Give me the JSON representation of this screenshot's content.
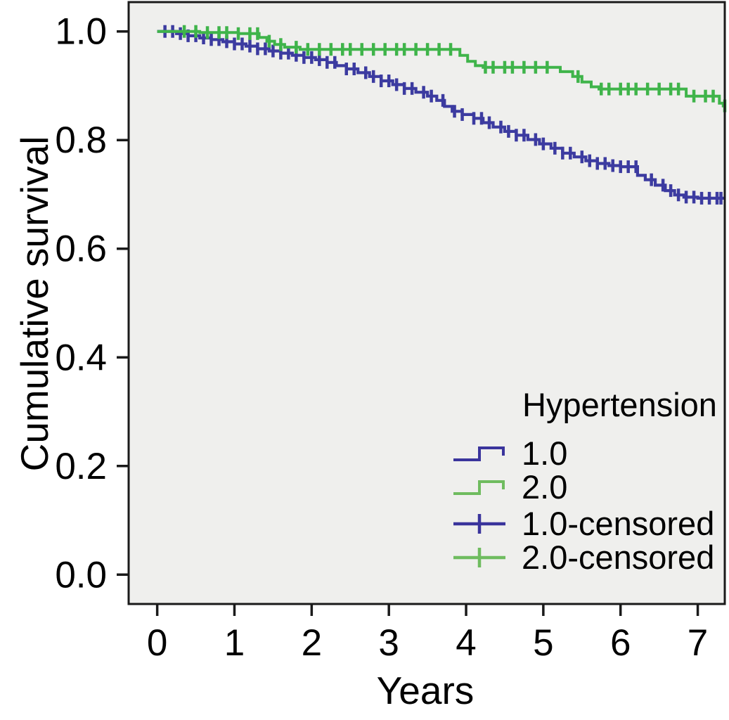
{
  "figure": {
    "background_color": "#ffffff"
  },
  "chart_data": {
    "type": "line",
    "subtype": "kaplan-meier-step-survival",
    "title": "",
    "xlabel": "Years",
    "ylabel": "Cumulative survival",
    "xlim": [
      -0.37,
      7.35
    ],
    "ylim": [
      -0.054,
      1.054
    ],
    "grid": false,
    "plot_background": "#efefed",
    "axis_color": "#1a1a1a",
    "xticks": {
      "values": [
        0,
        1,
        2,
        3,
        4,
        5,
        6,
        7
      ],
      "labels": [
        "0",
        "1",
        "2",
        "3",
        "4",
        "5",
        "6",
        "7"
      ]
    },
    "yticks": {
      "values": [
        0.0,
        0.2,
        0.4,
        0.6,
        0.8,
        1.0
      ],
      "labels": [
        "0.0",
        "0.2",
        "0.4",
        "0.6",
        "0.8",
        "1.0"
      ]
    },
    "legend": {
      "title": "Hypertension",
      "position": "lower-right-inside",
      "entries": [
        {
          "label": "1.0",
          "type": "step-line",
          "color": "#3a349c"
        },
        {
          "label": "2.0",
          "type": "step-line",
          "color": "#6fbc5f"
        },
        {
          "label": "1.0-censored",
          "type": "censor-plus",
          "color": "#3a349c"
        },
        {
          "label": "2.0-censored",
          "type": "censor-plus",
          "color": "#6fbc5f"
        }
      ]
    },
    "series": [
      {
        "name": "1.0",
        "color": "#3c3ba0",
        "line_width": 4.2,
        "steps": [
          [
            0.0,
            1.0
          ],
          [
            0.25,
            0.996
          ],
          [
            0.4,
            0.992
          ],
          [
            0.55,
            0.988
          ],
          [
            0.7,
            0.985
          ],
          [
            0.85,
            0.981
          ],
          [
            1.0,
            0.977
          ],
          [
            1.15,
            0.973
          ],
          [
            1.3,
            0.968
          ],
          [
            1.45,
            0.964
          ],
          [
            1.6,
            0.96
          ],
          [
            1.75,
            0.956
          ],
          [
            1.9,
            0.952
          ],
          [
            2.05,
            0.948
          ],
          [
            2.2,
            0.943
          ],
          [
            2.32,
            0.937
          ],
          [
            2.45,
            0.931
          ],
          [
            2.6,
            0.924
          ],
          [
            2.75,
            0.917
          ],
          [
            2.9,
            0.909
          ],
          [
            3.05,
            0.902
          ],
          [
            3.2,
            0.895
          ],
          [
            3.35,
            0.888
          ],
          [
            3.5,
            0.881
          ],
          [
            3.62,
            0.873
          ],
          [
            3.72,
            0.862
          ],
          [
            3.82,
            0.853
          ],
          [
            3.95,
            0.847
          ],
          [
            4.1,
            0.84
          ],
          [
            4.22,
            0.832
          ],
          [
            4.35,
            0.824
          ],
          [
            4.5,
            0.816
          ],
          [
            4.65,
            0.809
          ],
          [
            4.8,
            0.801
          ],
          [
            4.95,
            0.793
          ],
          [
            5.1,
            0.785
          ],
          [
            5.25,
            0.776
          ],
          [
            5.4,
            0.769
          ],
          [
            5.55,
            0.762
          ],
          [
            5.7,
            0.757
          ],
          [
            5.85,
            0.753
          ],
          [
            6.0,
            0.751
          ],
          [
            6.22,
            0.735
          ],
          [
            6.32,
            0.727
          ],
          [
            6.45,
            0.717
          ],
          [
            6.58,
            0.707
          ],
          [
            6.7,
            0.699
          ],
          [
            6.82,
            0.695
          ],
          [
            7.0,
            0.693
          ]
        ],
        "censored_times": [
          0.1,
          0.2,
          0.3,
          0.4,
          0.5,
          0.6,
          0.7,
          0.8,
          0.9,
          1.0,
          1.1,
          1.2,
          1.3,
          1.4,
          1.5,
          1.6,
          1.7,
          1.8,
          1.9,
          2.0,
          2.1,
          2.2,
          2.3,
          2.45,
          2.55,
          2.7,
          2.8,
          2.9,
          3.0,
          3.1,
          3.2,
          3.3,
          3.45,
          3.55,
          3.7,
          3.85,
          3.95,
          4.1,
          4.2,
          4.3,
          4.45,
          4.55,
          4.65,
          4.75,
          4.9,
          5.0,
          5.15,
          5.25,
          5.35,
          5.5,
          5.6,
          5.7,
          5.8,
          5.9,
          6.0,
          6.1,
          6.2,
          6.4,
          6.55,
          6.65,
          6.75,
          6.85,
          6.95,
          7.05,
          7.15,
          7.25,
          7.3
        ]
      },
      {
        "name": "2.0",
        "color": "#3fb44a",
        "line_width": 4.0,
        "steps": [
          [
            0.0,
            1.0
          ],
          [
            0.55,
            0.998
          ],
          [
            1.05,
            0.996
          ],
          [
            1.32,
            0.989
          ],
          [
            1.42,
            0.982
          ],
          [
            1.52,
            0.976
          ],
          [
            1.65,
            0.971
          ],
          [
            1.85,
            0.967
          ],
          [
            3.92,
            0.956
          ],
          [
            4.02,
            0.945
          ],
          [
            4.12,
            0.937
          ],
          [
            4.22,
            0.934
          ],
          [
            5.22,
            0.926
          ],
          [
            5.38,
            0.917
          ],
          [
            5.5,
            0.907
          ],
          [
            5.62,
            0.898
          ],
          [
            5.72,
            0.894
          ],
          [
            6.85,
            0.881
          ],
          [
            7.28,
            0.868
          ],
          [
            7.33,
            0.863
          ]
        ],
        "censored_times": [
          0.35,
          0.5,
          0.65,
          0.8,
          0.9,
          1.05,
          1.2,
          1.3,
          1.45,
          1.6,
          1.8,
          1.95,
          2.1,
          2.25,
          2.4,
          2.5,
          2.65,
          2.8,
          2.95,
          3.1,
          3.2,
          3.35,
          3.5,
          3.65,
          3.8,
          4.25,
          4.35,
          4.5,
          4.6,
          4.75,
          4.9,
          5.05,
          5.45,
          5.75,
          5.85,
          6.0,
          6.1,
          6.2,
          6.35,
          6.5,
          6.65,
          6.75,
          6.95,
          7.1,
          7.2,
          7.35
        ]
      }
    ]
  }
}
